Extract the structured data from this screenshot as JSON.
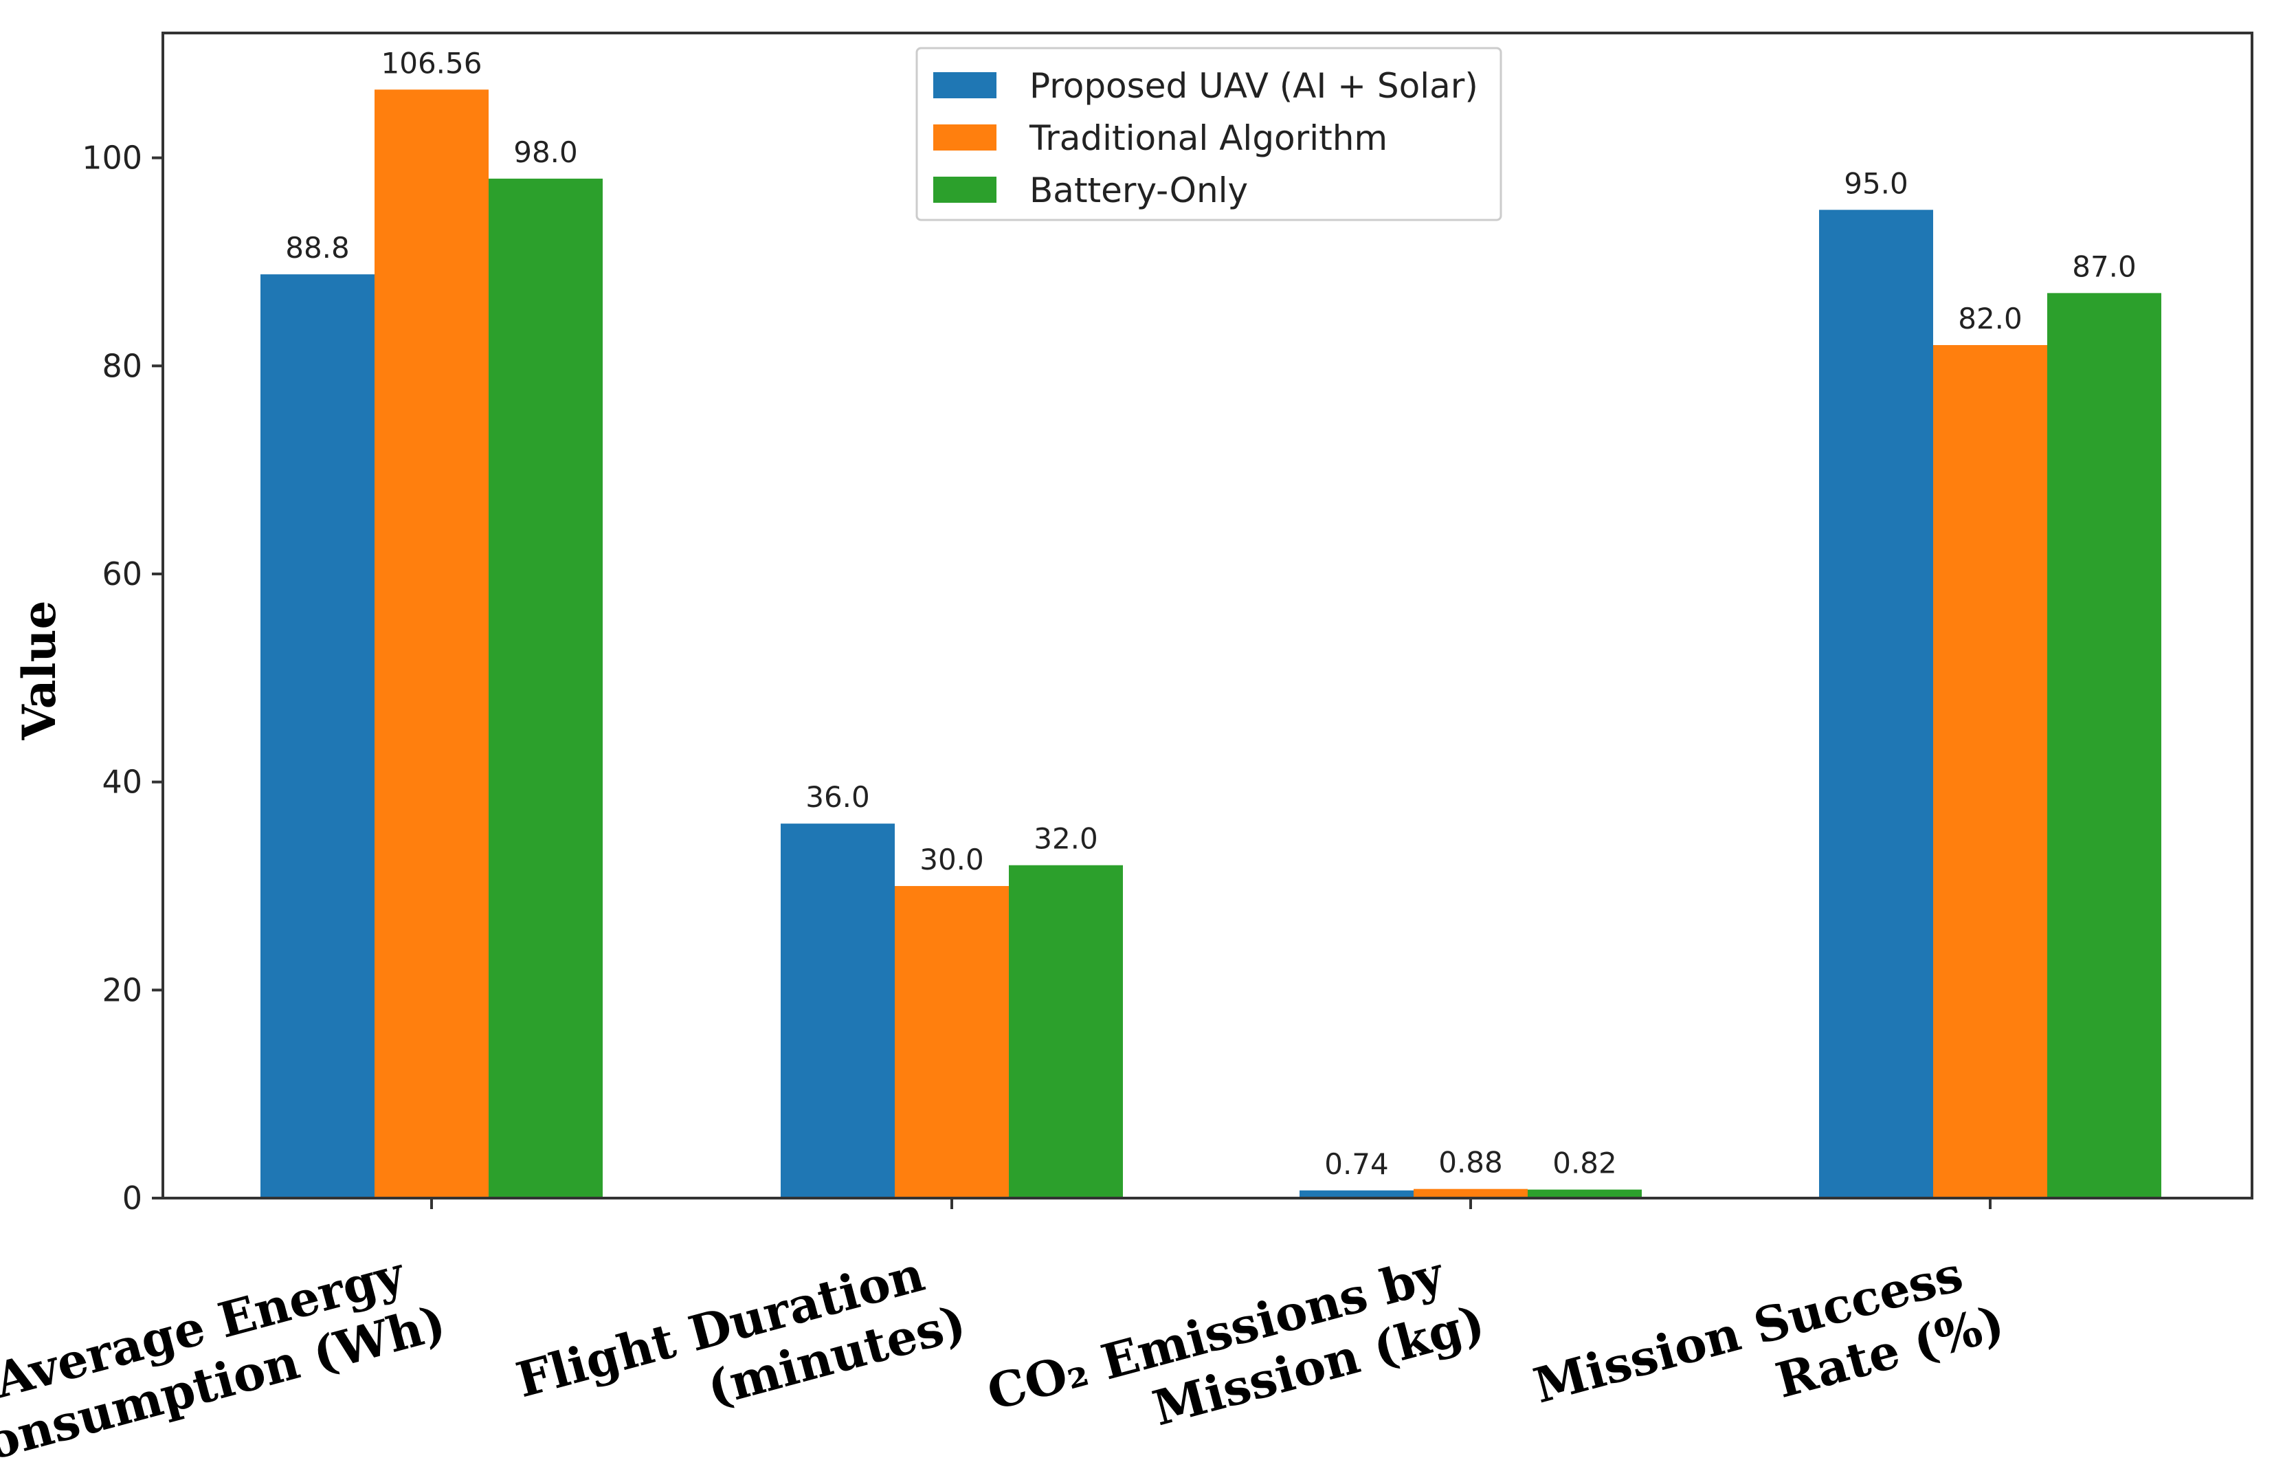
{
  "chart_data": {
    "type": "bar",
    "title": "",
    "xlabel": "",
    "ylabel": "Value",
    "ylim": [
      0,
      112
    ],
    "yticks": [
      0,
      20,
      40,
      60,
      80,
      100
    ],
    "grid": false,
    "legend_position": "top-center",
    "categories": [
      [
        "Average Energy",
        "Consumption (Wh)"
      ],
      [
        "Flight Duration",
        "(minutes)"
      ],
      [
        "CO₂ Emissions by",
        "Mission (kg)"
      ],
      [
        "Mission Success",
        "Rate (%)"
      ]
    ],
    "series": [
      {
        "name": "Proposed UAV (AI + Solar)",
        "color": "#1f77b4",
        "values": [
          88.8,
          36.0,
          0.74,
          95.0
        ],
        "labels": [
          "88.8",
          "36.0",
          "0.74",
          "95.0"
        ]
      },
      {
        "name": "Traditional Algorithm",
        "color": "#ff7f0e",
        "values": [
          106.56,
          30.0,
          0.88,
          82.0
        ],
        "labels": [
          "106.56",
          "30.0",
          "0.88",
          "82.0"
        ]
      },
      {
        "name": "Battery-Only",
        "color": "#2ca02c",
        "values": [
          98.0,
          32.0,
          0.82,
          87.0
        ],
        "labels": [
          "98.0",
          "32.0",
          "0.82",
          "87.0"
        ]
      }
    ]
  }
}
